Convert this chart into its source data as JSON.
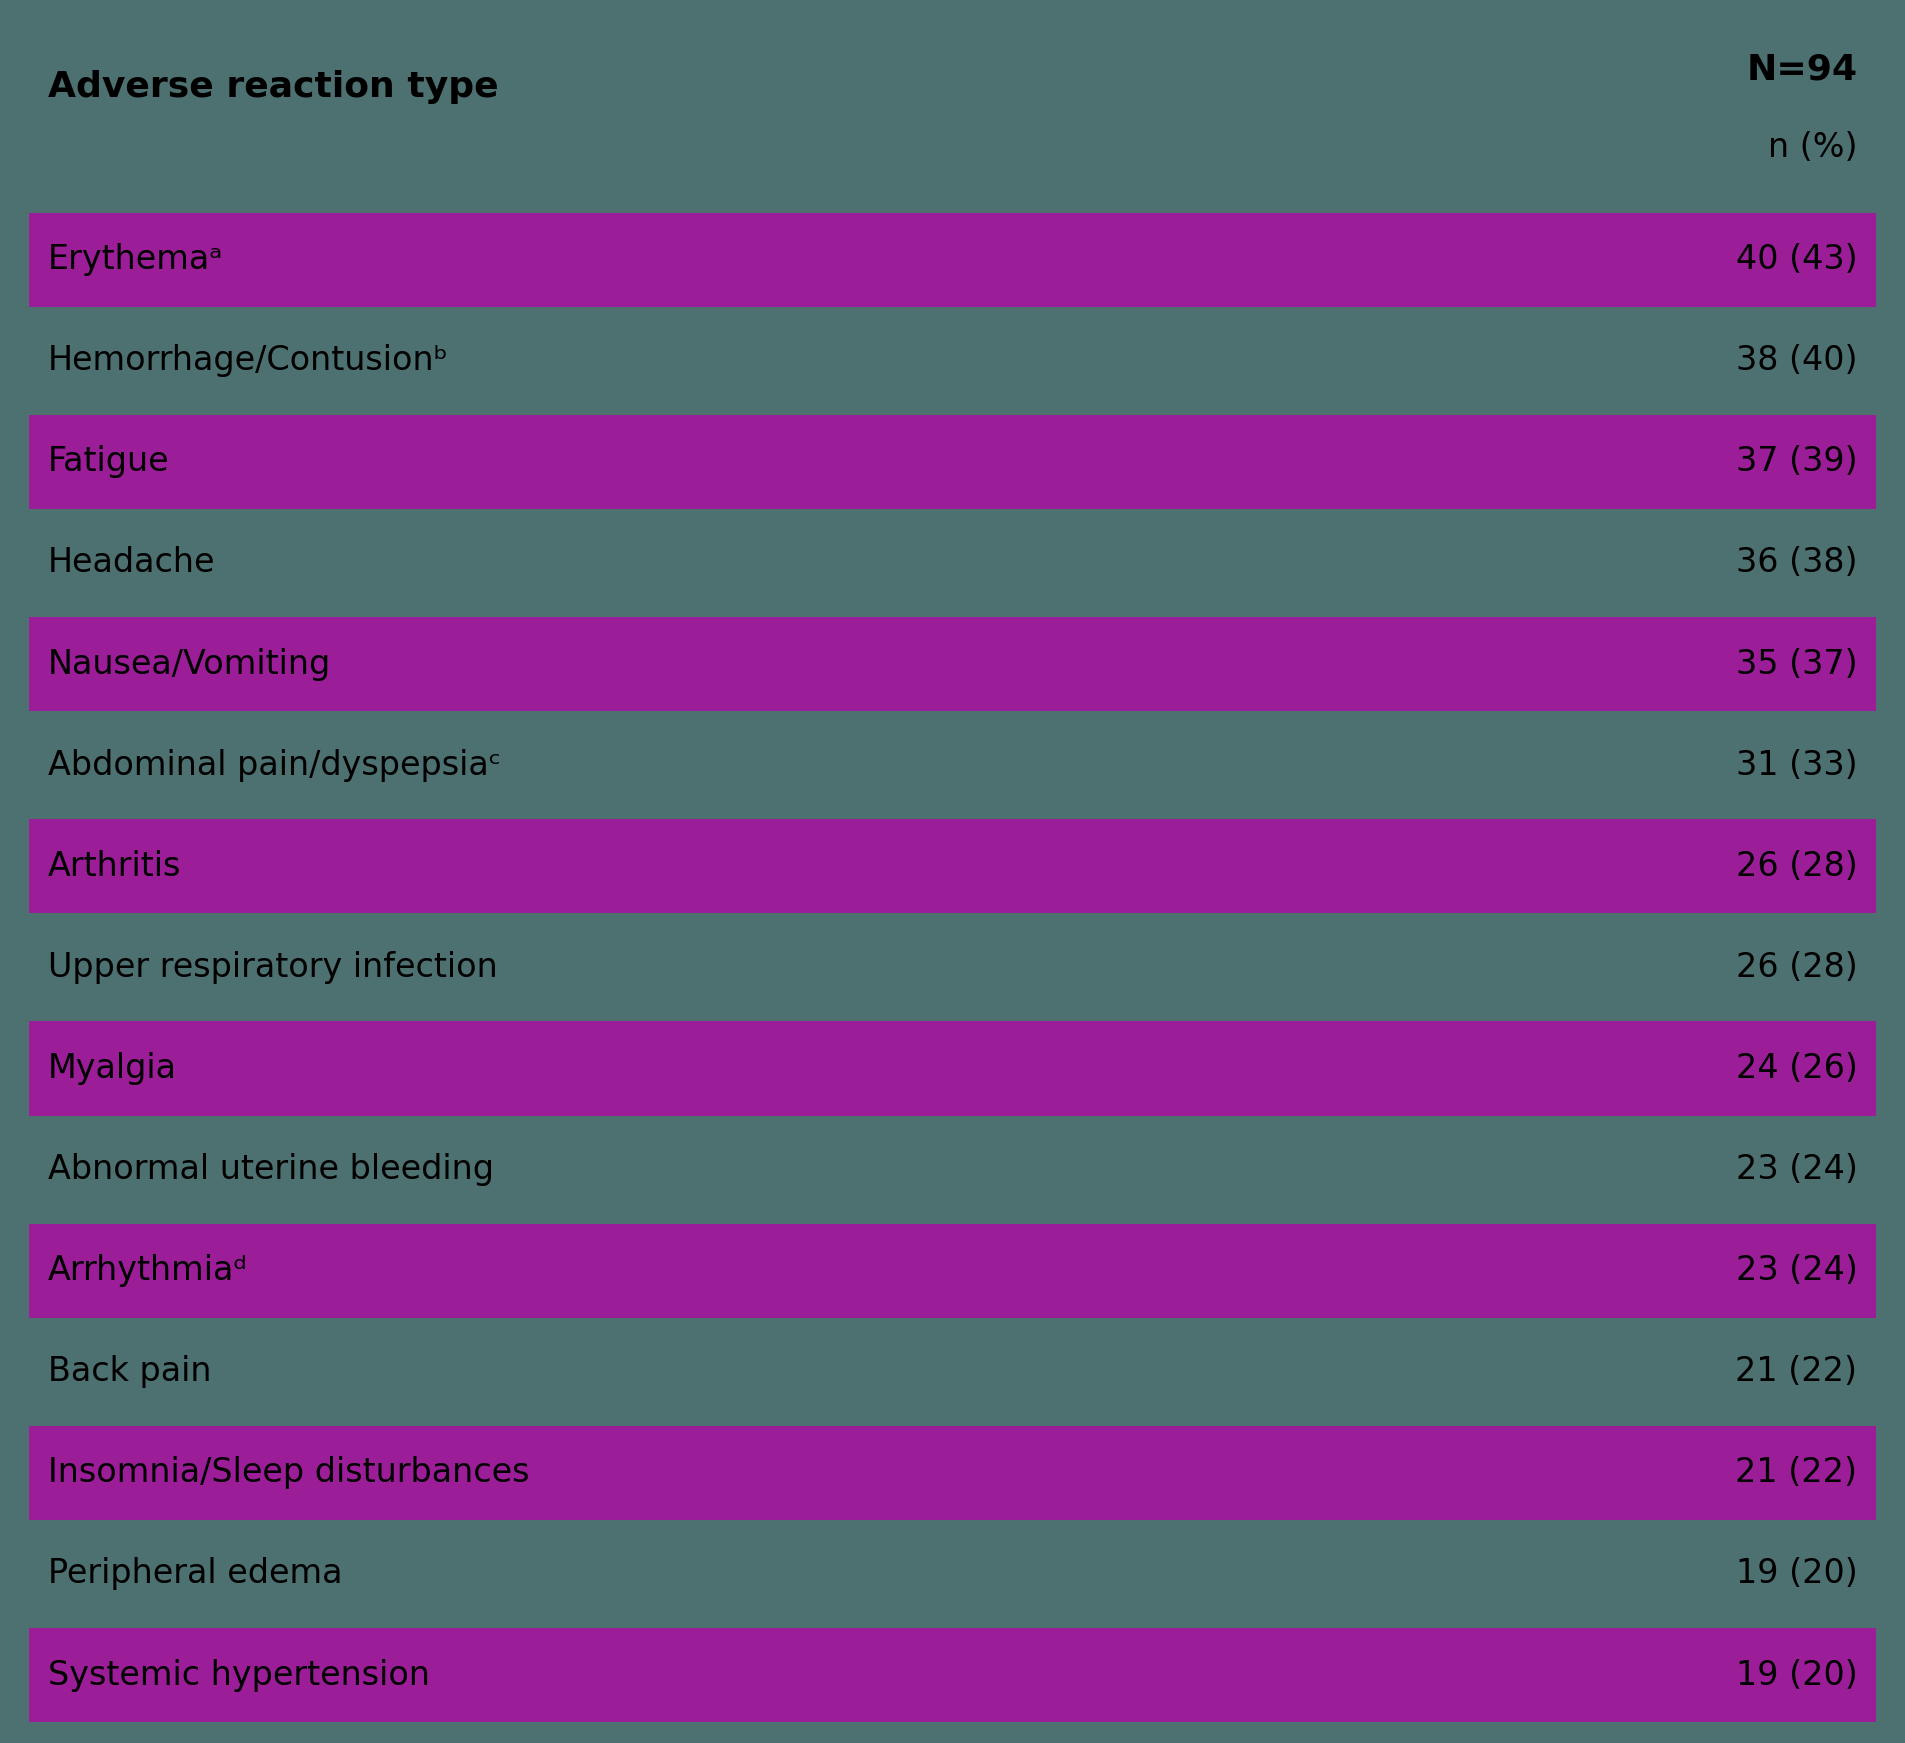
{
  "background_color": "#4d7070",
  "purple_color": "#9b1d97",
  "text_color": "#000000",
  "header_left": "Adverse reaction type",
  "header_right_line1": "N=94",
  "header_right_line2": "n (%)",
  "rows": [
    {
      "label": "Erythemaᵃ",
      "value": "40 (43)",
      "highlighted": true
    },
    {
      "label": "Hemorrhage/Contusionᵇ",
      "value": "38 (40)",
      "highlighted": false
    },
    {
      "label": "Fatigue",
      "value": "37 (39)",
      "highlighted": true
    },
    {
      "label": "Headache",
      "value": "36 (38)",
      "highlighted": false
    },
    {
      "label": "Nausea/Vomiting",
      "value": "35 (37)",
      "highlighted": true
    },
    {
      "label": "Abdominal pain/dyspepsiaᶜ",
      "value": "31 (33)",
      "highlighted": false
    },
    {
      "label": "Arthritis",
      "value": "26 (28)",
      "highlighted": true
    },
    {
      "label": "Upper respiratory infection",
      "value": "26 (28)",
      "highlighted": false
    },
    {
      "label": "Myalgia",
      "value": "24 (26)",
      "highlighted": true
    },
    {
      "label": "Abnormal uterine bleeding",
      "value": "23 (24)",
      "highlighted": false
    },
    {
      "label": "Arrhythmiaᵈ",
      "value": "23 (24)",
      "highlighted": true
    },
    {
      "label": "Back pain",
      "value": "21 (22)",
      "highlighted": false
    },
    {
      "label": "Insomnia/Sleep disturbances",
      "value": "21 (22)",
      "highlighted": true
    },
    {
      "label": "Peripheral edema",
      "value": "19 (20)",
      "highlighted": false
    },
    {
      "label": "Systemic hypertension",
      "value": "19 (20)",
      "highlighted": true
    }
  ],
  "fig_width": 19.05,
  "fig_height": 17.43,
  "dpi": 100
}
